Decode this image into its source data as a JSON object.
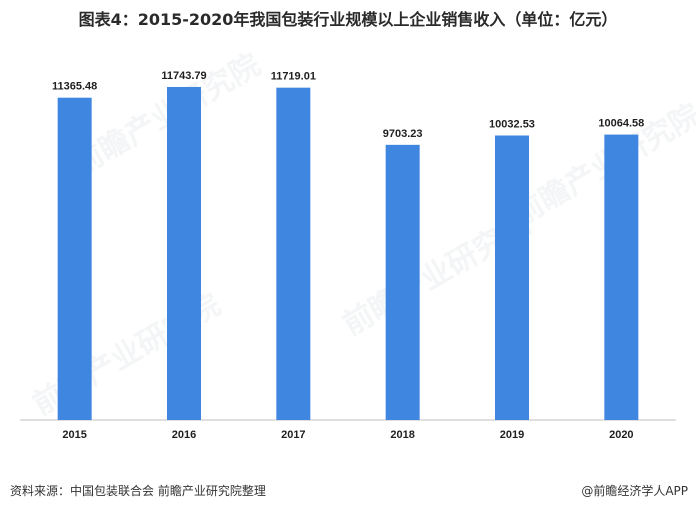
{
  "chart_data": {
    "type": "bar",
    "title": "图表4：2015-2020年我国包装行业规模以上企业销售收入（单位：亿元）",
    "categories": [
      "2015",
      "2016",
      "2017",
      "2018",
      "2019",
      "2020"
    ],
    "values": [
      11365.48,
      11743.79,
      11719.01,
      9703.23,
      10032.53,
      10064.58
    ],
    "value_labels": [
      "11365.48",
      "11743.79",
      "11719.01",
      "9703.23",
      "10032.53",
      "10064.58"
    ],
    "ylim": [
      0,
      13400
    ],
    "grid": false,
    "bar_color": "#3f86e0",
    "axis_color": "#bfbfbf"
  },
  "footer": {
    "source": "资料来源：中国包装联合会 前瞻产业研究院整理",
    "credit": "@前瞻经济学人APP"
  },
  "watermark": "前瞻产业研究院"
}
